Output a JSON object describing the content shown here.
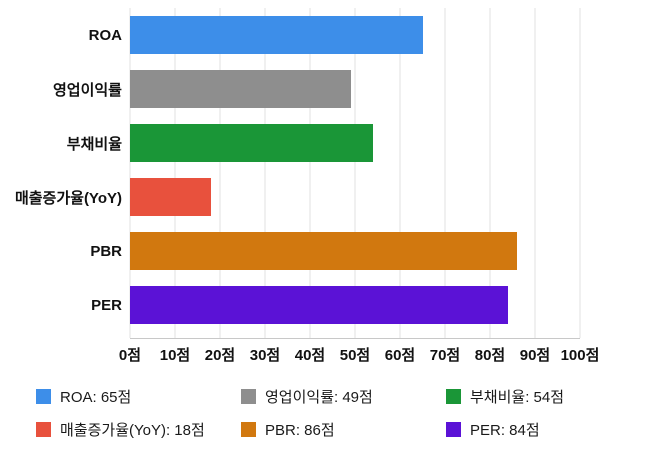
{
  "chart_data": {
    "type": "bar",
    "orientation": "horizontal",
    "title": "",
    "xlabel": "",
    "ylabel": "",
    "unit": "점",
    "xlim": [
      0,
      100
    ],
    "grid": true,
    "legend_position": "bottom",
    "categories": [
      "ROA",
      "영업이익률",
      "부채비율",
      "매출증가율(YoY)",
      "PBR",
      "PER"
    ],
    "values": [
      65,
      49,
      54,
      18,
      86,
      84
    ],
    "colors": [
      "#3d8ee9",
      "#8e8e8e",
      "#1a9637",
      "#e8513d",
      "#d1780f",
      "#5b12d6"
    ],
    "x_ticks": [
      "0점",
      "10점",
      "20점",
      "30점",
      "40점",
      "50점",
      "60점",
      "70점",
      "80점",
      "90점",
      "100점"
    ],
    "legend": [
      {
        "label": "ROA: 65점",
        "color": "#3d8ee9"
      },
      {
        "label": "영업이익률: 49점",
        "color": "#8e8e8e"
      },
      {
        "label": "부채비율: 54점",
        "color": "#1a9637"
      },
      {
        "label": "매출증가율(YoY): 18점",
        "color": "#e8513d"
      },
      {
        "label": "PBR: 86점",
        "color": "#d1780f"
      },
      {
        "label": "PER: 84점",
        "color": "#5b12d6"
      }
    ]
  }
}
